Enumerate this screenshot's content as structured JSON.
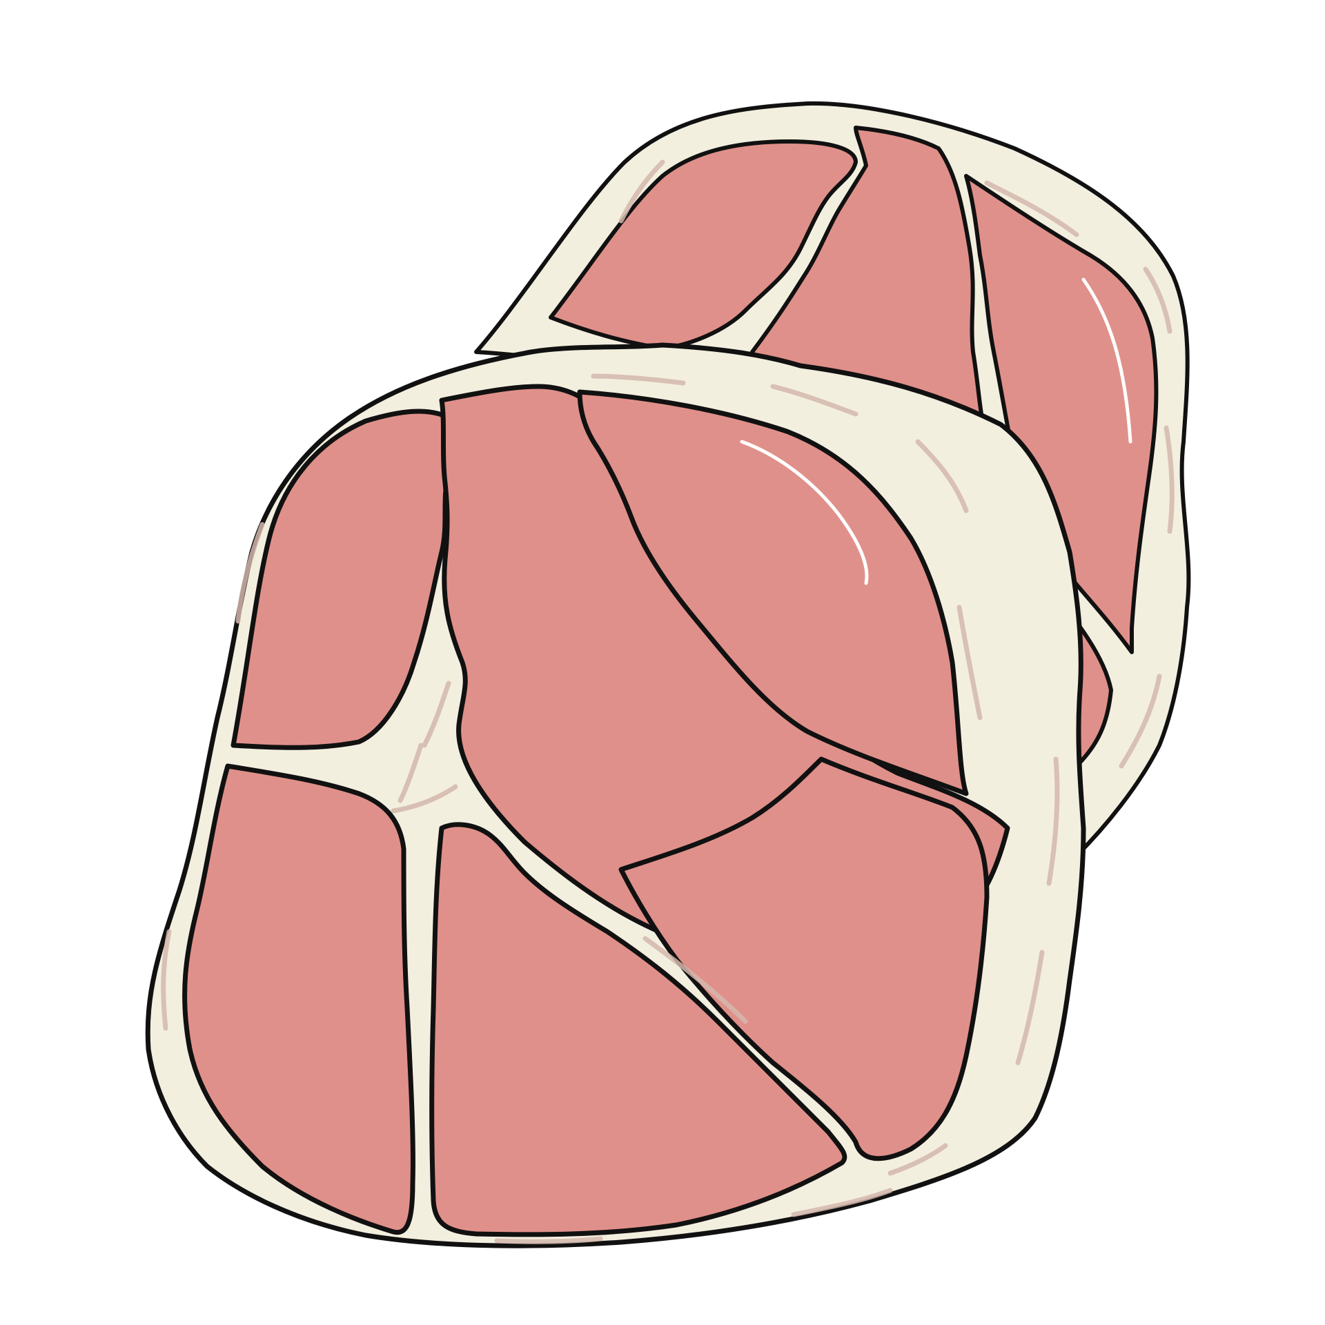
{
  "image": {
    "subject": "two-meat-slices-illustration",
    "background_color": "#ffffff",
    "colors": {
      "meat": "#e0908a",
      "fat": "#f3efdf",
      "fat_streak": "#d4b7ad",
      "outline": "#111111",
      "highlight": "#ffffff"
    }
  }
}
